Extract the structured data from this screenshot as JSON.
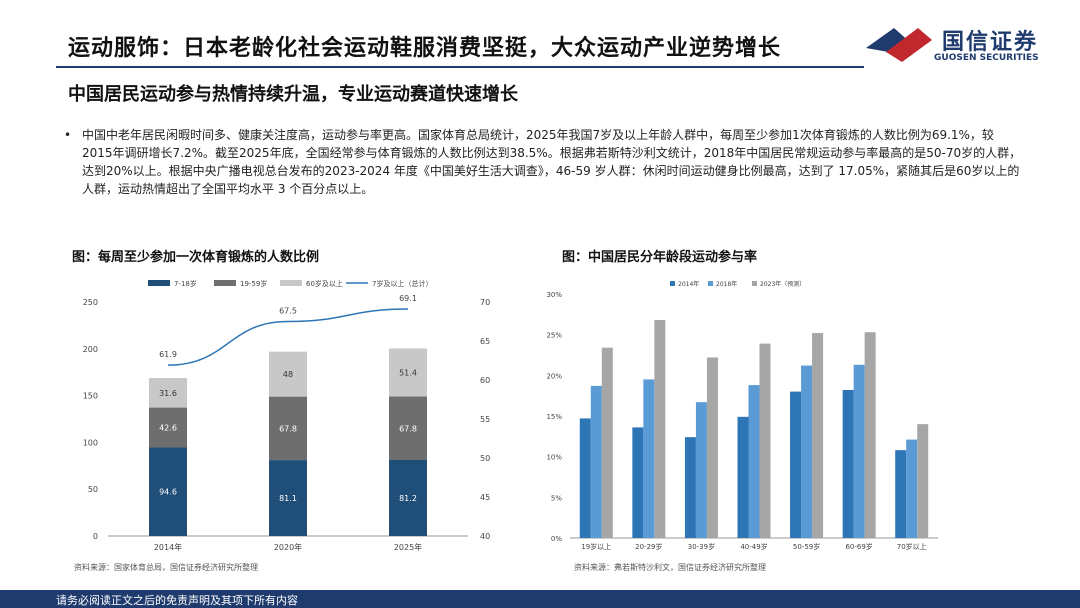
{
  "header": {
    "title": "运动服饰：日本老龄化社会运动鞋服消费坚挺，大众运动产业逆势增长",
    "logo_cn": "国信证券",
    "logo_en": "GUOSEN SECURITIES"
  },
  "subtitle": "中国居民运动参与热情持续升温，专业运动赛道快速增长",
  "paragraph": {
    "bullet": "•",
    "text": "中国中老年居民闲暇时间多、健康关注度高，运动参与率更高。国家体育总局统计，2025年我国7岁及以上年龄人群中，每周至少参加1次体育锻炼的人数比例为69.1%，较2015年调研增长7.2%。截至2025年底，全国经常参与体育锻炼的人数比例达到38.5%。根据弗若斯特沙利文统计，2018年中国居民常规运动参与率最高的是50-70岁的人群，达到20%以上。根据中央广播电视总台发布的2023-2024 年度《中国美好生活大调查》，46-59 岁人群：休闲时间运动健身比例最高，达到了 17.05%，紧随其后是60岁以上的人群，运动热情超出了全国平均水平 3 个百分点以上。"
  },
  "colors": {
    "navy": "#1f3b6e",
    "c1": "#1f4e79",
    "c2": "#6e6e6e",
    "c3": "#c8c8c8",
    "line": "#2e75b6",
    "blue_a": "#2e75b6",
    "blue_b": "#5b9bd5",
    "gray_b": "#a6a6a6"
  },
  "chart_data": [
    {
      "type": "bar",
      "stacked": true,
      "title": "图：每周至少参加一次体育锻炼的人数比例",
      "categories": [
        "2014年",
        "2020年",
        "2025年"
      ],
      "series": [
        {
          "name": "7-18岁",
          "values": [
            94.6,
            81.1,
            81.2
          ],
          "labels": [
            "94.6",
            "81.1",
            "81.2"
          ]
        },
        {
          "name": "19-59岁",
          "values": [
            42.6,
            67.8,
            67.8
          ],
          "labels": [
            "42.6",
            "67.8",
            "67.8"
          ]
        },
        {
          "name": "60岁及以上",
          "values": [
            31.6,
            48,
            51.4
          ],
          "labels": [
            "31.6",
            "48",
            "51.4"
          ]
        }
      ],
      "line": {
        "name": "7岁及以上（总计）",
        "values": [
          61.9,
          67.5,
          69.1
        ],
        "labels": [
          "61.9",
          "67.5",
          "69.1"
        ]
      },
      "ylim": [
        0,
        250
      ],
      "yticks": [
        "0",
        "50",
        "100",
        "150",
        "200",
        "250"
      ],
      "y2lim": [
        40,
        70
      ],
      "y2ticks": [
        "40",
        "45",
        "50",
        "55",
        "60",
        "65",
        "70"
      ],
      "legend": "top",
      "source": "资料来源：国家体育总局，国信证券经济研究所整理"
    },
    {
      "type": "bar",
      "title": "图：中国居民分年龄段运动参与率",
      "categories": [
        "19岁以上",
        "20-29岁",
        "30-39岁",
        "40-49岁",
        "50-59岁",
        "60-69岁",
        "70岁以上"
      ],
      "series": [
        {
          "name": "2014年",
          "values": [
            14.7,
            13.6,
            12.4,
            14.9,
            18.0,
            18.2,
            10.8
          ]
        },
        {
          "name": "2018年",
          "values": [
            18.7,
            19.5,
            16.7,
            18.8,
            21.2,
            21.3,
            12.1
          ]
        },
        {
          "name": "2023年（预测）",
          "values": [
            23.4,
            26.8,
            22.2,
            23.9,
            25.2,
            25.3,
            14.0
          ]
        }
      ],
      "ylim": [
        0,
        30
      ],
      "yticks": [
        "0%",
        "5%",
        "10%",
        "15%",
        "20%",
        "25%",
        "30%"
      ],
      "legend": "top",
      "source": "资料来源：弗若斯特沙利文，国信证券经济研究所整理"
    }
  ],
  "footer": {
    "text": "请务必阅读正文之后的免责声明及其项下所有内容"
  }
}
